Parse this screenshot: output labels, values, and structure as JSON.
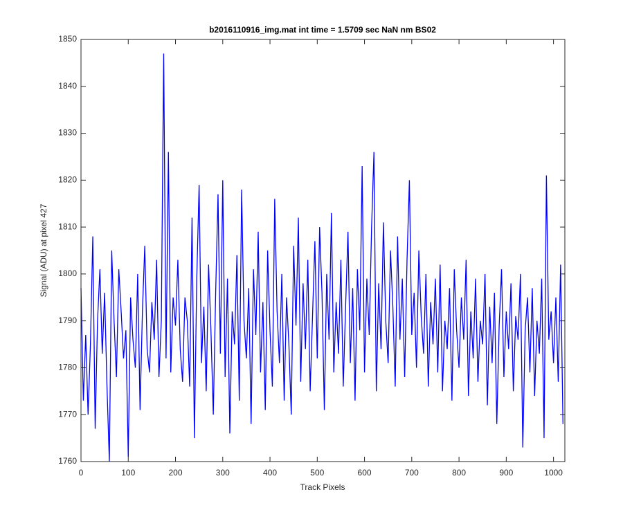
{
  "chart_data": {
    "type": "line",
    "title": "b2016110916_img.mat int time = 1.5709 sec  NaN nm BS02",
    "xlabel": "Track Pixels",
    "ylabel": "Signal (ADU) at pixel 427",
    "color": "#0000ff",
    "x": [
      0,
      5,
      10,
      15,
      20,
      25,
      30,
      35,
      40,
      45,
      50,
      55,
      60,
      65,
      70,
      75,
      80,
      85,
      90,
      95,
      100,
      105,
      110,
      115,
      120,
      125,
      130,
      135,
      140,
      145,
      150,
      155,
      160,
      165,
      170,
      175,
      180,
      185,
      190,
      195,
      200,
      205,
      210,
      215,
      220,
      225,
      230,
      235,
      240,
      245,
      250,
      255,
      260,
      265,
      270,
      275,
      280,
      285,
      290,
      295,
      300,
      305,
      310,
      315,
      320,
      325,
      330,
      335,
      340,
      345,
      350,
      355,
      360,
      365,
      370,
      375,
      380,
      385,
      390,
      395,
      400,
      405,
      410,
      415,
      420,
      425,
      430,
      435,
      440,
      445,
      450,
      455,
      460,
      465,
      470,
      475,
      480,
      485,
      490,
      495,
      500,
      505,
      510,
      515,
      520,
      525,
      530,
      535,
      540,
      545,
      550,
      555,
      560,
      565,
      570,
      575,
      580,
      585,
      590,
      595,
      600,
      605,
      610,
      615,
      620,
      625,
      630,
      635,
      640,
      645,
      650,
      655,
      660,
      665,
      670,
      675,
      680,
      685,
      690,
      695,
      700,
      705,
      710,
      715,
      720,
      725,
      730,
      735,
      740,
      745,
      750,
      755,
      760,
      765,
      770,
      775,
      780,
      785,
      790,
      795,
      800,
      805,
      810,
      815,
      820,
      825,
      830,
      835,
      840,
      845,
      850,
      855,
      860,
      865,
      870,
      875,
      880,
      885,
      890,
      895,
      900,
      905,
      910,
      915,
      920,
      925,
      930,
      935,
      940,
      945,
      950,
      955,
      960,
      965,
      970,
      975,
      980,
      985,
      990,
      995,
      1000,
      1005,
      1010,
      1015,
      1020
    ],
    "values": [
      1797,
      1773,
      1787,
      1770,
      1785,
      1808,
      1767,
      1790,
      1801,
      1783,
      1796,
      1776,
      1760,
      1805,
      1790,
      1778,
      1801,
      1792,
      1782,
      1788,
      1761,
      1795,
      1786,
      1780,
      1800,
      1771,
      1792,
      1806,
      1784,
      1779,
      1794,
      1786,
      1803,
      1778,
      1790,
      1847,
      1782,
      1826,
      1779,
      1795,
      1789,
      1803,
      1784,
      1777,
      1795,
      1790,
      1776,
      1812,
      1765,
      1799,
      1819,
      1781,
      1793,
      1775,
      1802,
      1788,
      1770,
      1796,
      1817,
      1783,
      1820,
      1778,
      1799,
      1766,
      1792,
      1785,
      1804,
      1773,
      1818,
      1790,
      1782,
      1797,
      1768,
      1801,
      1787,
      1809,
      1779,
      1794,
      1771,
      1805,
      1788,
      1776,
      1816,
      1792,
      1781,
      1800,
      1773,
      1795,
      1785,
      1770,
      1806,
      1789,
      1812,
      1777,
      1798,
      1784,
      1803,
      1775,
      1791,
      1807,
      1782,
      1810,
      1796,
      1771,
      1800,
      1786,
      1813,
      1779,
      1794,
      1783,
      1803,
      1776,
      1793,
      1809,
      1781,
      1797,
      1773,
      1801,
      1788,
      1823,
      1779,
      1799,
      1787,
      1810,
      1826,
      1775,
      1798,
      1784,
      1811,
      1790,
      1781,
      1805,
      1793,
      1776,
      1808,
      1786,
      1799,
      1778,
      1803,
      1820,
      1787,
      1796,
      1780,
      1805,
      1791,
      1783,
      1800,
      1776,
      1794,
      1785,
      1799,
      1779,
      1802,
      1775,
      1790,
      1784,
      1797,
      1773,
      1801,
      1788,
      1780,
      1795,
      1786,
      1803,
      1774,
      1792,
      1782,
      1799,
      1777,
      1790,
      1785,
      1800,
      1772,
      1793,
      1781,
      1796,
      1768,
      1789,
      1801,
      1778,
      1792,
      1784,
      1798,
      1775,
      1791,
      1786,
      1800,
      1763,
      1788,
      1795,
      1779,
      1797,
      1774,
      1790,
      1783,
      1799,
      1765,
      1821,
      1786,
      1792,
      1781,
      1795,
      1777,
      1802,
      1768
    ],
    "xlim": [
      0,
      1024
    ],
    "xticks": [
      0,
      100,
      200,
      300,
      400,
      500,
      600,
      700,
      800,
      900,
      1000
    ],
    "ylim": [
      1760,
      1850
    ],
    "yticks": [
      1760,
      1770,
      1780,
      1790,
      1800,
      1810,
      1820,
      1830,
      1840,
      1850
    ]
  }
}
